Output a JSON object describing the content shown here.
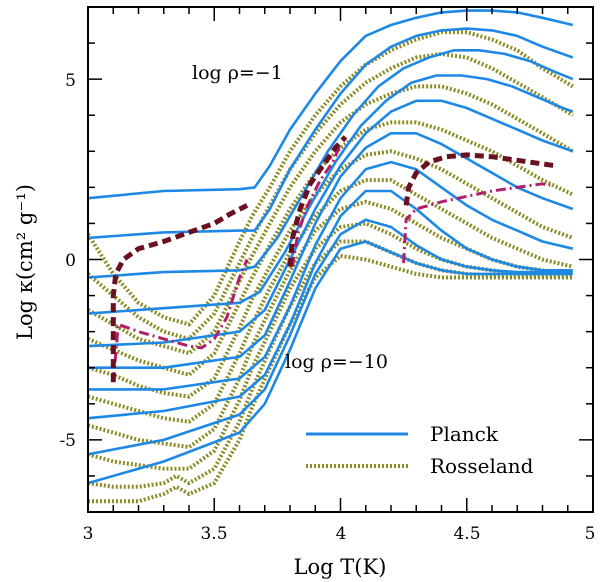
{
  "chart_data": {
    "type": "line",
    "title": "",
    "xlabel": "Log T(K)",
    "ylabel": "Log κ(cm² g⁻¹)",
    "xlim": [
      3,
      5
    ],
    "ylim": [
      -7,
      7
    ],
    "xticks": [
      "3",
      "3.5",
      "4",
      "4.5",
      "5"
    ],
    "yticks": [
      "5",
      "0",
      "-5"
    ],
    "annotations": [
      "log ρ=−1",
      "log ρ=−10"
    ],
    "legend": {
      "position": "bottom-right",
      "entries": [
        "Planck",
        "Rosseland"
      ]
    },
    "colors": {
      "planck": "#1e88e5",
      "rosseland": "#8c8c26",
      "dash_red": "#6b1020",
      "dashdot_magenta": "#b0206a"
    },
    "planck_series": [
      {
        "name": "Planck log rho=-1",
        "x": [
          3.0,
          3.3,
          3.6,
          3.66,
          3.72,
          3.8,
          3.9,
          4.0,
          4.1,
          4.2,
          4.3,
          4.4,
          4.5,
          4.6,
          4.7,
          4.8,
          4.92
        ],
        "y": [
          1.7,
          1.9,
          1.95,
          2.0,
          2.6,
          3.6,
          4.6,
          5.5,
          6.2,
          6.5,
          6.7,
          6.85,
          6.9,
          6.9,
          6.85,
          6.7,
          6.5
        ]
      },
      {
        "name": "Planck log rho=-2",
        "x": [
          3.0,
          3.3,
          3.6,
          3.66,
          3.72,
          3.8,
          3.9,
          4.0,
          4.1,
          4.2,
          4.3,
          4.4,
          4.5,
          4.6,
          4.7,
          4.8,
          4.92
        ],
        "y": [
          0.6,
          0.75,
          0.8,
          0.8,
          1.4,
          2.5,
          3.6,
          4.6,
          5.4,
          5.9,
          6.2,
          6.35,
          6.4,
          6.35,
          6.2,
          5.9,
          5.6
        ]
      },
      {
        "name": "Planck log rho=-3",
        "x": [
          3.0,
          3.3,
          3.6,
          3.66,
          3.75,
          3.85,
          3.95,
          4.05,
          4.15,
          4.25,
          4.35,
          4.45,
          4.55,
          4.65,
          4.75,
          4.85,
          4.92
        ],
        "y": [
          -0.5,
          -0.35,
          -0.3,
          -0.2,
          0.6,
          1.8,
          3.0,
          4.0,
          4.8,
          5.3,
          5.6,
          5.8,
          5.8,
          5.7,
          5.5,
          5.2,
          5.0
        ]
      },
      {
        "name": "Planck log rho=-4",
        "x": [
          3.0,
          3.3,
          3.6,
          3.68,
          3.78,
          3.88,
          3.98,
          4.08,
          4.18,
          4.28,
          4.38,
          4.48,
          4.58,
          4.68,
          4.78,
          4.88,
          4.92
        ],
        "y": [
          -1.5,
          -1.35,
          -1.2,
          -0.9,
          0.2,
          1.5,
          2.7,
          3.7,
          4.4,
          4.9,
          5.1,
          5.1,
          5.0,
          4.8,
          4.5,
          4.2,
          4.1
        ]
      },
      {
        "name": "Planck log rho=-5",
        "x": [
          3.0,
          3.3,
          3.6,
          3.7,
          3.8,
          3.9,
          4.0,
          4.1,
          4.2,
          4.3,
          4.4,
          4.5,
          4.6,
          4.7,
          4.8,
          4.92
        ],
        "y": [
          -2.4,
          -2.3,
          -2.0,
          -1.4,
          0.0,
          1.4,
          2.6,
          3.5,
          4.1,
          4.4,
          4.4,
          4.2,
          3.9,
          3.6,
          3.3,
          3.0
        ]
      },
      {
        "name": "Planck log rho=-6",
        "x": [
          3.0,
          3.3,
          3.6,
          3.7,
          3.8,
          3.9,
          4.0,
          4.1,
          4.2,
          4.3,
          4.4,
          4.5,
          4.6,
          4.7,
          4.8,
          4.92
        ],
        "y": [
          -3.0,
          -3.0,
          -2.7,
          -2.1,
          -0.6,
          1.0,
          2.3,
          3.1,
          3.5,
          3.5,
          3.2,
          2.8,
          2.4,
          2.0,
          1.7,
          1.4
        ]
      },
      {
        "name": "Planck log rho=-7",
        "x": [
          3.0,
          3.3,
          3.6,
          3.7,
          3.8,
          3.9,
          4.0,
          4.1,
          4.2,
          4.3,
          4.4,
          4.5,
          4.6,
          4.7,
          4.8,
          4.92
        ],
        "y": [
          -3.6,
          -3.6,
          -3.3,
          -2.7,
          -1.3,
          0.4,
          1.7,
          2.5,
          2.7,
          2.5,
          2.0,
          1.5,
          1.1,
          0.8,
          0.5,
          0.3
        ]
      },
      {
        "name": "Planck log rho=-8",
        "x": [
          3.0,
          3.3,
          3.6,
          3.7,
          3.8,
          3.9,
          4.0,
          4.1,
          4.2,
          4.3,
          4.4,
          4.5,
          4.6,
          4.7,
          4.8,
          4.92
        ],
        "y": [
          -4.4,
          -4.2,
          -3.8,
          -3.2,
          -1.8,
          -0.1,
          1.2,
          1.9,
          1.9,
          1.4,
          0.8,
          0.3,
          0.0,
          -0.2,
          -0.3,
          -0.3
        ]
      },
      {
        "name": "Planck log rho=-9",
        "x": [
          3.0,
          3.3,
          3.6,
          3.7,
          3.8,
          3.9,
          4.0,
          4.1,
          4.2,
          4.3,
          4.4,
          4.5,
          4.6,
          4.7,
          4.8,
          4.92
        ],
        "y": [
          -5.4,
          -5.0,
          -4.3,
          -3.6,
          -2.1,
          -0.4,
          0.7,
          1.1,
          0.9,
          0.4,
          0.0,
          -0.2,
          -0.3,
          -0.35,
          -0.35,
          -0.35
        ]
      },
      {
        "name": "Planck log rho=-10",
        "x": [
          3.0,
          3.3,
          3.6,
          3.7,
          3.8,
          3.9,
          4.0,
          4.1,
          4.2,
          4.3,
          4.4,
          4.5,
          4.6,
          4.7,
          4.8,
          4.92
        ],
        "y": [
          -6.2,
          -5.6,
          -4.8,
          -4.0,
          -2.5,
          -0.8,
          0.3,
          0.5,
          0.2,
          -0.1,
          -0.3,
          -0.4,
          -0.4,
          -0.4,
          -0.4,
          -0.4
        ]
      }
    ],
    "rosseland_series": [
      {
        "name": "Rosseland log rho=-1",
        "x": [
          3.0,
          3.1,
          3.2,
          3.3,
          3.4,
          3.5,
          3.6,
          3.65,
          3.72,
          3.8,
          3.9,
          4.0,
          4.1,
          4.2,
          4.3,
          4.4,
          4.5,
          4.6,
          4.7,
          4.8,
          4.92
        ],
        "y": [
          0.7,
          -0.4,
          -1.2,
          -1.6,
          -1.8,
          -1.0,
          0.5,
          1.2,
          2.0,
          3.0,
          4.0,
          4.8,
          5.4,
          5.8,
          6.1,
          6.3,
          6.3,
          6.1,
          5.8,
          5.3,
          4.8
        ]
      },
      {
        "name": "Rosseland log rho=-2",
        "x": [
          3.0,
          3.1,
          3.2,
          3.3,
          3.4,
          3.5,
          3.6,
          3.65,
          3.72,
          3.8,
          3.9,
          4.0,
          4.1,
          4.2,
          4.3,
          4.4,
          4.5,
          4.6,
          4.7,
          4.8,
          4.92
        ],
        "y": [
          -0.4,
          -1.0,
          -1.6,
          -2.0,
          -2.2,
          -1.5,
          -0.1,
          0.6,
          1.5,
          2.5,
          3.5,
          4.3,
          4.9,
          5.3,
          5.6,
          5.7,
          5.6,
          5.3,
          4.9,
          4.5,
          4.0
        ]
      },
      {
        "name": "Rosseland log rho=-3",
        "x": [
          3.0,
          3.1,
          3.2,
          3.3,
          3.4,
          3.5,
          3.6,
          3.65,
          3.72,
          3.8,
          3.9,
          4.0,
          4.1,
          4.2,
          4.3,
          4.4,
          4.5,
          4.6,
          4.7,
          4.8,
          4.92
        ],
        "y": [
          -1.4,
          -1.8,
          -2.2,
          -2.4,
          -2.6,
          -2.0,
          -0.6,
          0.1,
          1.0,
          2.0,
          3.0,
          3.8,
          4.3,
          4.6,
          4.8,
          4.8,
          4.6,
          4.3,
          3.9,
          3.5,
          3.0
        ]
      },
      {
        "name": "Rosseland log rho=-4",
        "x": [
          3.0,
          3.1,
          3.2,
          3.3,
          3.4,
          3.5,
          3.6,
          3.65,
          3.72,
          3.8,
          3.9,
          4.0,
          4.1,
          4.2,
          4.3,
          4.4,
          4.5,
          4.6,
          4.7,
          4.8,
          4.92
        ],
        "y": [
          -2.2,
          -2.5,
          -2.8,
          -3.0,
          -3.2,
          -2.6,
          -1.2,
          -0.5,
          0.4,
          1.4,
          2.4,
          3.1,
          3.6,
          3.8,
          3.8,
          3.6,
          3.3,
          3.0,
          2.6,
          2.2,
          1.8
        ]
      },
      {
        "name": "Rosseland log rho=-5",
        "x": [
          3.0,
          3.1,
          3.2,
          3.3,
          3.4,
          3.5,
          3.6,
          3.65,
          3.72,
          3.8,
          3.9,
          4.0,
          4.1,
          4.2,
          4.3,
          4.4,
          4.5,
          4.6,
          4.7,
          4.8,
          4.92
        ],
        "y": [
          -3.0,
          -3.2,
          -3.5,
          -3.7,
          -3.8,
          -3.3,
          -1.9,
          -1.1,
          -0.2,
          0.8,
          1.8,
          2.5,
          2.9,
          3.0,
          2.8,
          2.5,
          2.1,
          1.7,
          1.3,
          0.9,
          0.6
        ]
      },
      {
        "name": "Rosseland log rho=-6",
        "x": [
          3.0,
          3.1,
          3.2,
          3.3,
          3.4,
          3.5,
          3.6,
          3.65,
          3.72,
          3.8,
          3.9,
          4.0,
          4.1,
          4.2,
          4.3,
          4.4,
          4.5,
          4.6,
          4.7,
          4.8,
          4.92
        ],
        "y": [
          -3.8,
          -4.0,
          -4.2,
          -4.4,
          -4.5,
          -4.0,
          -2.6,
          -1.8,
          -0.8,
          0.2,
          1.2,
          1.9,
          2.2,
          2.2,
          1.8,
          1.4,
          1.0,
          0.6,
          0.3,
          0.0,
          -0.2
        ]
      },
      {
        "name": "Rosseland log rho=-7",
        "x": [
          3.0,
          3.1,
          3.2,
          3.3,
          3.4,
          3.5,
          3.6,
          3.65,
          3.72,
          3.8,
          3.9,
          4.0,
          4.1,
          4.2,
          4.3,
          4.4,
          4.5,
          4.6,
          4.7,
          4.8,
          4.92
        ],
        "y": [
          -4.6,
          -4.8,
          -5.0,
          -5.1,
          -5.2,
          -4.7,
          -3.3,
          -2.4,
          -1.4,
          -0.3,
          0.8,
          1.4,
          1.6,
          1.4,
          1.0,
          0.6,
          0.3,
          0.0,
          -0.2,
          -0.3,
          -0.4
        ]
      },
      {
        "name": "Rosseland log rho=-8",
        "x": [
          3.0,
          3.1,
          3.2,
          3.3,
          3.4,
          3.5,
          3.6,
          3.65,
          3.72,
          3.8,
          3.9,
          4.0,
          4.1,
          4.2,
          4.3,
          4.4,
          4.5,
          4.6,
          4.7,
          4.8,
          4.92
        ],
        "y": [
          -5.4,
          -5.6,
          -5.7,
          -5.8,
          -5.8,
          -5.3,
          -3.9,
          -3.0,
          -2.0,
          -0.8,
          0.3,
          0.9,
          1.0,
          0.7,
          0.3,
          0.0,
          -0.2,
          -0.3,
          -0.4,
          -0.4,
          -0.4
        ]
      },
      {
        "name": "Rosseland log rho=-9",
        "x": [
          3.0,
          3.1,
          3.2,
          3.3,
          3.35,
          3.4,
          3.5,
          3.6,
          3.65,
          3.72,
          3.8,
          3.9,
          4.0,
          4.1,
          4.2,
          4.3,
          4.4,
          4.5,
          4.6,
          4.7,
          4.8,
          4.92
        ],
        "y": [
          -6.2,
          -6.3,
          -6.3,
          -6.2,
          -6.0,
          -6.2,
          -5.8,
          -4.5,
          -3.6,
          -2.5,
          -1.3,
          -0.1,
          0.5,
          0.5,
          0.2,
          -0.1,
          -0.3,
          -0.4,
          -0.45,
          -0.45,
          -0.45,
          -0.45
        ]
      },
      {
        "name": "Rosseland log rho=-10",
        "x": [
          3.0,
          3.1,
          3.2,
          3.3,
          3.35,
          3.4,
          3.5,
          3.6,
          3.65,
          3.72,
          3.8,
          3.9,
          4.0,
          4.1,
          4.2,
          4.3,
          4.4,
          4.5,
          4.6,
          4.7,
          4.8,
          4.92
        ],
        "y": [
          -6.7,
          -6.7,
          -6.7,
          -6.5,
          -6.3,
          -6.5,
          -6.2,
          -5.0,
          -4.1,
          -3.0,
          -1.8,
          -0.5,
          0.1,
          0.0,
          -0.2,
          -0.4,
          -0.5,
          -0.5,
          -0.5,
          -0.5,
          -0.5,
          -0.5
        ]
      }
    ],
    "dash_red_segments": [
      {
        "x": [
          3.1,
          3.1,
          3.11,
          3.14,
          3.2,
          3.3,
          3.4,
          3.5,
          3.56,
          3.63
        ],
        "y": [
          -3.4,
          -1.0,
          -0.4,
          0.0,
          0.3,
          0.5,
          0.75,
          1.0,
          1.25,
          1.5
        ]
      },
      {
        "x": [
          3.8,
          3.81,
          3.84,
          3.88,
          3.93,
          3.98,
          4.02
        ],
        "y": [
          -0.2,
          0.6,
          1.4,
          2.1,
          2.6,
          3.1,
          3.4
        ]
      },
      {
        "x": [
          4.26,
          4.27,
          4.3,
          4.35,
          4.42,
          4.5,
          4.6,
          4.7,
          4.8,
          4.85
        ],
        "y": [
          1.5,
          2.0,
          2.4,
          2.7,
          2.85,
          2.9,
          2.85,
          2.75,
          2.65,
          2.6
        ]
      }
    ],
    "dashdot_magenta_segments": [
      {
        "x": [
          3.1,
          3.12,
          3.2,
          3.3,
          3.4,
          3.45,
          3.5,
          3.55,
          3.6,
          3.63
        ],
        "y": [
          -3.4,
          -1.8,
          -2.0,
          -2.2,
          -2.4,
          -2.45,
          -2.2,
          -1.6,
          -0.5,
          0.0
        ]
      },
      {
        "x": [
          3.81,
          3.83,
          3.87,
          3.92,
          3.97,
          4.0
        ],
        "y": [
          -0.2,
          0.7,
          1.5,
          2.2,
          2.7,
          3.2
        ]
      },
      {
        "x": [
          4.25,
          4.26,
          4.3,
          4.4,
          4.5,
          4.6,
          4.7,
          4.8,
          4.83
        ],
        "y": [
          -0.1,
          1.1,
          1.4,
          1.6,
          1.75,
          1.9,
          2.0,
          2.1,
          2.05
        ]
      }
    ]
  }
}
